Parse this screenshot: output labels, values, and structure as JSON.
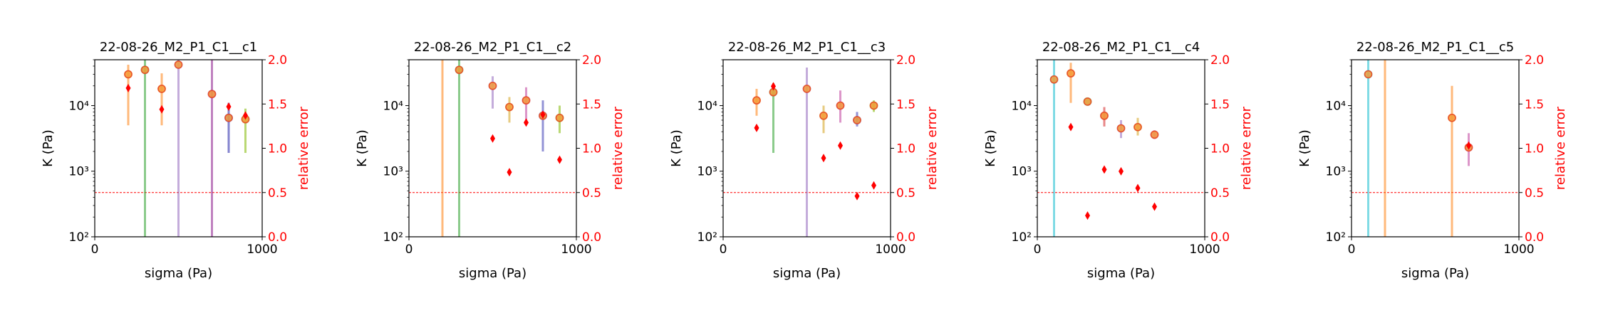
{
  "chart_data": [
    {
      "type": "scatter",
      "title": "22-08-26_M2_P1_C1__c1",
      "xlabel": "sigma (Pa)",
      "ylabel": "K (Pa)",
      "y2label": "relative error",
      "xlim": [
        0,
        1000
      ],
      "ylim": [
        100,
        50000
      ],
      "yscale": "log",
      "y2lim": [
        0,
        2
      ],
      "x_ticks": [
        "0",
        "1000"
      ],
      "y_ticks": [
        {
          "v": 100,
          "label": "10²"
        },
        {
          "v": 1000,
          "label": "10³"
        },
        {
          "v": 10000,
          "label": "10⁴"
        }
      ],
      "y2_ticks": [
        "0.0",
        "0.5",
        "1.0",
        "1.5",
        "2.0"
      ],
      "threshold": 0.5,
      "colors": {
        "K_marker_fill": "#f5a040",
        "K_marker_edge": "#e8532a",
        "relative_error": "#ff0000",
        "threshold_line": "#ff0000"
      },
      "points": [
        {
          "x": 200,
          "k": 30000,
          "k_lo": 5000,
          "k_hi": 42000,
          "color": "#ff7f0e",
          "err": 1.68
        },
        {
          "x": 300,
          "k": 35000,
          "k_lo": 100,
          "k_hi": 50000,
          "color": "#2ca02c",
          "err": null
        },
        {
          "x": 400,
          "k": 18000,
          "k_lo": 5000,
          "k_hi": 31000,
          "color": "#ff7f0e",
          "err": 1.44
        },
        {
          "x": 500,
          "k": 42000,
          "k_lo": 100,
          "k_hi": 50000,
          "color": "#9467bd",
          "err": null
        },
        {
          "x": 700,
          "k": 15000,
          "k_lo": 100,
          "k_hi": 50000,
          "color": "#8c1a8c",
          "err": null
        },
        {
          "x": 800,
          "k": 6500,
          "k_lo": 1900,
          "k_hi": 11000,
          "color": "#1f1fa8",
          "err": 1.47
        },
        {
          "x": 900,
          "k": 6200,
          "k_lo": 1900,
          "k_hi": 9000,
          "color": "#7fb800",
          "err": 1.37
        }
      ]
    },
    {
      "type": "scatter",
      "title": "22-08-26_M2_P1_C1__c2",
      "xlabel": "sigma (Pa)",
      "ylabel": "K (Pa)",
      "y2label": "relative error",
      "xlim": [
        0,
        1000
      ],
      "ylim": [
        100,
        50000
      ],
      "yscale": "log",
      "y2lim": [
        0,
        2
      ],
      "x_ticks": [
        "0",
        "1000"
      ],
      "y_ticks": [
        {
          "v": 100,
          "label": "10²"
        },
        {
          "v": 1000,
          "label": "10³"
        },
        {
          "v": 10000,
          "label": "10⁴"
        }
      ],
      "y2_ticks": [
        "0.0",
        "0.5",
        "1.0",
        "1.5",
        "2.0"
      ],
      "threshold": 0.5,
      "colors": {
        "K_marker_fill": "#f5a040",
        "K_marker_edge": "#e8532a",
        "relative_error": "#ff0000",
        "threshold_line": "#ff0000"
      },
      "points": [
        {
          "x": 200,
          "k": null,
          "k_lo": 100,
          "k_hi": 50000,
          "color": "#ff7f0e",
          "err": null
        },
        {
          "x": 300,
          "k": 35000,
          "k_lo": 100,
          "k_hi": 50000,
          "color": "#2ca02c",
          "err": null
        },
        {
          "x": 500,
          "k": 20000,
          "k_lo": 9000,
          "k_hi": 28000,
          "color": "#9467bd",
          "err": 1.11
        },
        {
          "x": 600,
          "k": 9500,
          "k_lo": 5500,
          "k_hi": 13500,
          "color": "#d4a017",
          "err": 0.73
        },
        {
          "x": 700,
          "k": 12000,
          "k_lo": 6000,
          "k_hi": 19000,
          "color": "#c0409c",
          "err": 1.29
        },
        {
          "x": 800,
          "k": 7000,
          "k_lo": 2000,
          "k_hi": 12000,
          "color": "#3b3bb5",
          "err": 1.38
        },
        {
          "x": 900,
          "k": 6500,
          "k_lo": 3800,
          "k_hi": 10000,
          "color": "#7fb800",
          "err": 0.87
        }
      ]
    },
    {
      "type": "scatter",
      "title": "22-08-26_M2_P1_C1__c3",
      "xlabel": "sigma (Pa)",
      "ylabel": "K (Pa)",
      "y2label": "relative error",
      "xlim": [
        0,
        1000
      ],
      "ylim": [
        100,
        50000
      ],
      "yscale": "log",
      "y2lim": [
        0,
        2
      ],
      "x_ticks": [
        "0",
        "1000"
      ],
      "y_ticks": [
        {
          "v": 100,
          "label": "10²"
        },
        {
          "v": 1000,
          "label": "10³"
        },
        {
          "v": 10000,
          "label": "10⁴"
        }
      ],
      "y2_ticks": [
        "0.0",
        "0.5",
        "1.0",
        "1.5",
        "2.0"
      ],
      "threshold": 0.5,
      "colors": {
        "K_marker_fill": "#f5a040",
        "K_marker_edge": "#e8532a",
        "relative_error": "#ff0000",
        "threshold_line": "#ff0000"
      },
      "points": [
        {
          "x": 200,
          "k": 12000,
          "k_lo": 7000,
          "k_hi": 18000,
          "color": "#ff7f0e",
          "err": 1.23
        },
        {
          "x": 300,
          "k": 16000,
          "k_lo": 1900,
          "k_hi": 22000,
          "color": "#2ca02c",
          "err": 1.7
        },
        {
          "x": 500,
          "k": 18000,
          "k_lo": 100,
          "k_hi": 38000,
          "color": "#9467bd",
          "err": null
        },
        {
          "x": 600,
          "k": 7000,
          "k_lo": 3800,
          "k_hi": 10000,
          "color": "#d4a017",
          "err": 0.89
        },
        {
          "x": 700,
          "k": 10000,
          "k_lo": 5500,
          "k_hi": 17000,
          "color": "#c0409c",
          "err": 1.03
        },
        {
          "x": 800,
          "k": 6000,
          "k_lo": 4800,
          "k_hi": 8000,
          "color": "#3b3bb5",
          "err": 0.46
        },
        {
          "x": 900,
          "k": 10000,
          "k_lo": 8000,
          "k_hi": 12000,
          "color": "#7fb800",
          "err": 0.58
        }
      ]
    },
    {
      "type": "scatter",
      "title": "22-08-26_M2_P1_C1__c4",
      "xlabel": "sigma (Pa)",
      "ylabel": "K (Pa)",
      "y2label": "relative error",
      "xlim": [
        0,
        1000
      ],
      "ylim": [
        100,
        50000
      ],
      "yscale": "log",
      "y2lim": [
        0,
        2
      ],
      "x_ticks": [
        "0",
        "1000"
      ],
      "y_ticks": [
        {
          "v": 100,
          "label": "10²"
        },
        {
          "v": 1000,
          "label": "10³"
        },
        {
          "v": 10000,
          "label": "10⁴"
        }
      ],
      "y2_ticks": [
        "0.0",
        "0.5",
        "1.0",
        "1.5",
        "2.0"
      ],
      "threshold": 0.5,
      "colors": {
        "K_marker_fill": "#f5a040",
        "K_marker_edge": "#e8532a",
        "relative_error": "#ff0000",
        "threshold_line": "#ff0000"
      },
      "points": [
        {
          "x": 100,
          "k": 25000,
          "k_lo": 100,
          "k_hi": 50000,
          "color": "#17becf",
          "err": null
        },
        {
          "x": 200,
          "k": 31000,
          "k_lo": 11000,
          "k_hi": 45000,
          "color": "#ff7f0e",
          "err": 1.24
        },
        {
          "x": 300,
          "k": 11500,
          "k_lo": 11500,
          "k_hi": 11500,
          "color": "#2ca02c",
          "err": 0.24
        },
        {
          "x": 400,
          "k": 7000,
          "k_lo": 4800,
          "k_hi": 9500,
          "color": "#d62728",
          "err": 0.76
        },
        {
          "x": 500,
          "k": 4500,
          "k_lo": 3200,
          "k_hi": 6000,
          "color": "#9467bd",
          "err": 0.74
        },
        {
          "x": 600,
          "k": 4700,
          "k_lo": 3500,
          "k_hi": 6500,
          "color": "#d4a017",
          "err": 0.55
        },
        {
          "x": 700,
          "k": 3600,
          "k_lo": 3100,
          "k_hi": 4200,
          "color": "#c0409c",
          "err": 0.34
        }
      ]
    },
    {
      "type": "scatter",
      "title": "22-08-26_M2_P1_C1__c5",
      "xlabel": "sigma (Pa)",
      "ylabel": "K (Pa)",
      "y2label": "relative error",
      "xlim": [
        0,
        1000
      ],
      "ylim": [
        100,
        50000
      ],
      "yscale": "log",
      "y2lim": [
        0,
        2
      ],
      "x_ticks": [
        "0",
        "1000"
      ],
      "y_ticks": [
        {
          "v": 100,
          "label": "10²"
        },
        {
          "v": 1000,
          "label": "10³"
        },
        {
          "v": 10000,
          "label": "10⁴"
        }
      ],
      "y2_ticks": [
        "0.0",
        "0.5",
        "1.0",
        "1.5",
        "2.0"
      ],
      "threshold": 0.5,
      "colors": {
        "K_marker_fill": "#f5a040",
        "K_marker_edge": "#e8532a",
        "relative_error": "#ff0000",
        "threshold_line": "#ff0000"
      },
      "points": [
        {
          "x": 100,
          "k": 30000,
          "k_lo": 100,
          "k_hi": 50000,
          "color": "#17becf",
          "err": null
        },
        {
          "x": 200,
          "k": null,
          "k_lo": 100,
          "k_hi": 50000,
          "color": "#ff7f0e",
          "err": null
        },
        {
          "x": 600,
          "k": 6500,
          "k_lo": 100,
          "k_hi": 20000,
          "color": "#ff7f0e",
          "err": null
        },
        {
          "x": 700,
          "k": 2300,
          "k_lo": 1200,
          "k_hi": 3800,
          "color": "#c0409c",
          "err": 1.03
        }
      ]
    }
  ]
}
